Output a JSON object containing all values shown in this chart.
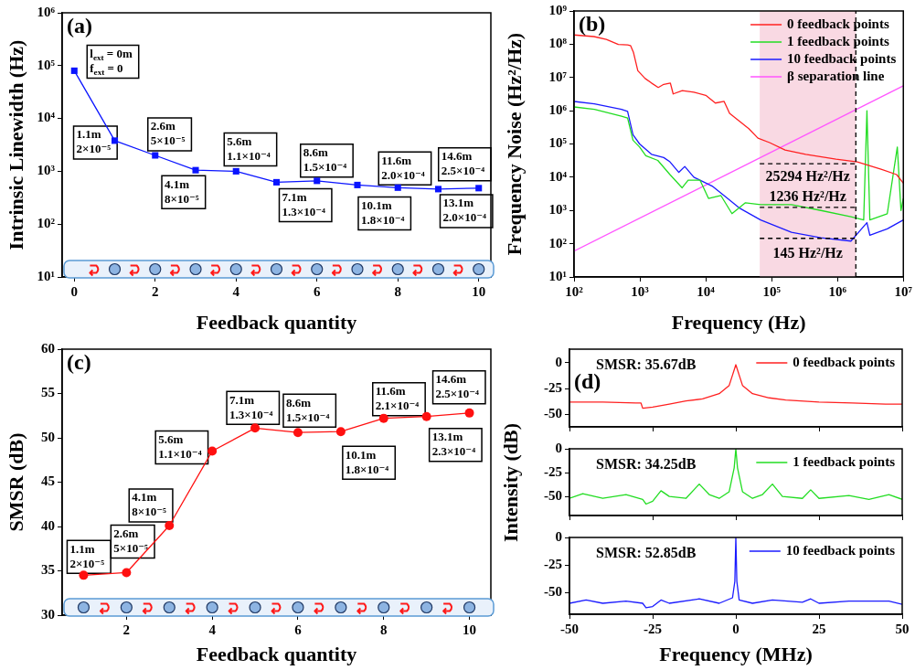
{
  "chart_data": [
    {
      "type": "line",
      "title": "(a)",
      "xlabel": "Feedback quantity",
      "ylabel": "Intrinsic Linewidth (Hz)",
      "log": "y",
      "marker": "square",
      "line_style": "solid",
      "color": "#0a14ff",
      "x": [
        0,
        1,
        2,
        3,
        4,
        5,
        6,
        7,
        8,
        9,
        10
      ],
      "values": [
        80000,
        3800,
        2000,
        1050,
        1000,
        620,
        660,
        550,
        490,
        460,
        480
      ],
      "xlim": [
        -0.3,
        10.3
      ],
      "xticks": [
        0,
        2,
        4,
        6,
        8,
        10
      ],
      "ylim": [
        10,
        1000000
      ],
      "yticks": [
        {
          "value": 10,
          "label": "10¹"
        },
        {
          "value": 100,
          "label": "10²"
        },
        {
          "value": 1000,
          "label": "10³"
        },
        {
          "value": 10000,
          "label": "10⁴"
        },
        {
          "value": 100000,
          "label": "10⁵"
        },
        {
          "value": 1000000,
          "label": "10⁶"
        }
      ],
      "annotations": [
        {
          "text": "l$_{ext}$ = 0m\nf$_{ext}$ = 0",
          "x": 0,
          "y": 80000
        },
        {
          "text": "1.1m\n2×10⁻⁵",
          "x": 1,
          "y": 3800
        },
        {
          "text": "2.6m\n5×10⁻⁵",
          "x": 2,
          "y": 2000
        },
        {
          "text": "4.1m\n8×10⁻⁵",
          "x": 3,
          "y": 1050
        },
        {
          "text": "5.6m\n1.1×10⁻⁴",
          "x": 4,
          "y": 1000
        },
        {
          "text": "7.1m\n1.3×10⁻⁴",
          "x": 5,
          "y": 620
        },
        {
          "text": "8.6m\n1.5×10⁻⁴",
          "x": 6,
          "y": 660
        },
        {
          "text": "10.1m\n1.8×10⁻⁴",
          "x": 7,
          "y": 550
        },
        {
          "text": "11.6m\n2.0×10⁻⁴",
          "x": 8,
          "y": 490
        },
        {
          "text": "13.1m\n2.0×10⁻⁴",
          "x": 9,
          "y": 460
        },
        {
          "text": "14.6m\n2.5×10⁻⁴",
          "x": 10,
          "y": 480
        }
      ]
    },
    {
      "type": "line",
      "title": "(b)",
      "xlabel": "Frequency (Hz)",
      "ylabel": "Frequency Noise (Hz²/Hz)",
      "log": "xy",
      "marker": "none",
      "legend": "top right",
      "xlim": [
        100,
        10000000
      ],
      "xticks": [
        {
          "value": 100,
          "label": "10²"
        },
        {
          "value": 1000,
          "label": "10³"
        },
        {
          "value": 10000,
          "label": "10⁴"
        },
        {
          "value": 100000,
          "label": "10⁵"
        },
        {
          "value": 1000000,
          "label": "10⁶"
        },
        {
          "value": 10000000,
          "label": "10⁷"
        }
      ],
      "ylim": [
        10,
        1000000000
      ],
      "yticks": [
        {
          "value": 10,
          "label": "10¹"
        },
        {
          "value": 100,
          "label": "10²"
        },
        {
          "value": 1000,
          "label": "10³"
        },
        {
          "value": 10000,
          "label": "10⁴"
        },
        {
          "value": 100000,
          "label": "10⁵"
        },
        {
          "value": 1000000,
          "label": "10⁶"
        },
        {
          "value": 10000000,
          "label": "10⁷"
        },
        {
          "value": 100000000,
          "label": "10⁸"
        },
        {
          "value": 1000000000,
          "label": "10⁹"
        }
      ],
      "series": [
        {
          "name": "0 feedback points",
          "color": "#ff2020",
          "x": [
            100,
            200,
            310,
            470,
            650,
            720,
            800,
            930,
            1200,
            1500,
            1900,
            2300,
            2900,
            3200,
            4400,
            6600,
            10000,
            14000,
            19000,
            23000,
            34000,
            45000,
            62000,
            93000,
            160000,
            330000,
            950000,
            2000000,
            4700000,
            7900000,
            10000000
          ],
          "values": [
            190000000,
            170000000,
            140000000,
            98000000,
            95000000,
            91000000,
            56000000,
            16000000,
            9300000,
            6800000,
            5000000,
            6200000,
            6800000,
            3200000,
            4000000,
            3600000,
            2900000,
            1700000,
            1900000,
            830000,
            450000,
            290000,
            150000,
            110000,
            66000,
            49000,
            35000,
            29000,
            17000,
            12000,
            6600
          ]
        },
        {
          "name": "1 feedback points",
          "color": "#22dd22",
          "x": [
            100,
            204,
            525,
            650,
            785,
            990,
            1230,
            1870,
            2860,
            4380,
            5400,
            8200,
            11000,
            17000,
            25000,
            40000,
            68000,
            200000,
            560000,
            1600000,
            2500000,
            2800000,
            3100000,
            5700000,
            8100000,
            9200000,
            10000000
          ],
          "values": [
            1300000,
            1100000,
            680000,
            600000,
            130000,
            81000,
            44000,
            32000,
            12000,
            4800,
            8100,
            8100,
            2300,
            2800,
            800,
            1700,
            1500,
            1500,
            1000,
            650,
            520,
            1000000,
            520,
            800,
            81000,
            1000,
            2300
          ]
        },
        {
          "name": "10 feedback points",
          "color": "#1a1aff",
          "x": [
            100,
            204,
            525,
            650,
            785,
            990,
            1500,
            2300,
            2860,
            3900,
            4800,
            6600,
            12500,
            19000,
            32000,
            68000,
            200000,
            560000,
            1600000,
            2800000,
            3100000,
            5700000,
            10000000
          ],
          "values": [
            1900000,
            1600000,
            1100000,
            950000,
            190000,
            100000,
            49000,
            39000,
            29000,
            14000,
            21000,
            10000,
            5400,
            2800,
            1200,
            520,
            220,
            150,
            120,
            430,
            180,
            280,
            520
          ]
        },
        {
          "name": "β separation line",
          "color": "#ff55ff",
          "x": [
            100,
            10000000
          ],
          "values": [
            60,
            5600000
          ]
        }
      ],
      "bands": [
        {
          "axis": "x",
          "from": 66000,
          "to": 1900000,
          "color": "#f9d9e3"
        }
      ],
      "ref_lines": [
        {
          "axis": "y",
          "value": 25294,
          "label": "25294 Hz²/Hz",
          "line_style": "dashed",
          "color": "#000000"
        },
        {
          "axis": "y",
          "value": 1236,
          "label": "1236 Hz²/Hz",
          "line_style": "dashed",
          "color": "#000000"
        },
        {
          "axis": "y",
          "value": 145,
          "label": "145 Hz²/Hz",
          "line_style": "dashed",
          "color": "#000000"
        },
        {
          "axis": "x",
          "value": 1900000,
          "line_style": "dashed",
          "color": "#000000"
        }
      ]
    },
    {
      "type": "line",
      "title": "(c)",
      "xlabel": "Feedback quantity",
      "ylabel": "SMSR (dB)",
      "marker": "circle",
      "line_style": "solid",
      "color": "#ff1010",
      "x": [
        1,
        2,
        3,
        4,
        5,
        6,
        7,
        8,
        9,
        10
      ],
      "values": [
        34.5,
        34.8,
        40.1,
        48.5,
        51.1,
        50.6,
        50.7,
        52.2,
        52.4,
        52.8
      ],
      "xlim": [
        0.5,
        10.5
      ],
      "xticks": [
        2,
        4,
        6,
        8,
        10
      ],
      "ylim": [
        30,
        60
      ],
      "yticks": [
        30,
        35,
        40,
        45,
        50,
        55,
        60
      ],
      "annotations": [
        {
          "text": "1.1m\n2×10⁻⁵",
          "x": 1,
          "y": 34.5
        },
        {
          "text": "2.6m\n5×10⁻⁵",
          "x": 2,
          "y": 34.8
        },
        {
          "text": "4.1m\n8×10⁻⁵",
          "x": 3,
          "y": 40.1
        },
        {
          "text": "5.6m\n1.1×10⁻⁴",
          "x": 4,
          "y": 48.5
        },
        {
          "text": "7.1m\n1.3×10⁻⁴",
          "x": 5,
          "y": 51.1
        },
        {
          "text": "8.6m\n1.5×10⁻⁴",
          "x": 6,
          "y": 50.6
        },
        {
          "text": "10.1m\n1.8×10⁻⁴",
          "x": 7,
          "y": 50.7
        },
        {
          "text": "11.6m\n2.1×10⁻⁴",
          "x": 8,
          "y": 52.2
        },
        {
          "text": "13.1m\n2.3×10⁻⁴",
          "x": 9,
          "y": 52.4
        },
        {
          "text": "14.6m\n2.5×10⁻⁴",
          "x": 10,
          "y": 52.8
        }
      ]
    },
    {
      "type": "line",
      "title": "(d)",
      "marker": "none",
      "legend": "top right",
      "tick_labels": "y",
      "xlim": [
        -50,
        50
      ],
      "xticks": [
        -50,
        -25,
        0,
        25,
        50
      ],
      "ylim": [
        -62,
        13
      ],
      "yticks": [
        -50,
        -25,
        0
      ],
      "annotations": [
        "SMSR: 35.67dB"
      ],
      "series": [
        {
          "name": "0 feedback points",
          "color": "#ff2020",
          "x": [
            -50,
            -40,
            -30,
            -28.5,
            -28,
            -25,
            -20,
            -15,
            -10,
            -5,
            -2,
            -1,
            0,
            1,
            2,
            5,
            10,
            15,
            25,
            35,
            45,
            50
          ],
          "values": [
            -38,
            -38,
            -39,
            -39,
            -44,
            -43,
            -40,
            -37,
            -35,
            -30,
            -22,
            -12,
            -2,
            -12,
            -22,
            -30,
            -34,
            -36,
            -38,
            -39,
            -40,
            -40
          ]
        }
      ]
    },
    {
      "type": "line",
      "ylabel": "Intensity (dB)",
      "marker": "none",
      "legend": "top right",
      "tick_labels": "y",
      "xlim": [
        -50,
        50
      ],
      "xticks": [
        -50,
        -25,
        0,
        25,
        50
      ],
      "ylim": [
        -70,
        0
      ],
      "yticks": [
        -50,
        -25,
        0
      ],
      "annotations": [
        "SMSR: 34.25dB"
      ],
      "series": [
        {
          "name": "1 feedback points",
          "color": "#22dd22",
          "x": [
            -50,
            -46,
            -40,
            -33,
            -28,
            -27,
            -25,
            -22.5,
            -20,
            -15,
            -11,
            -8,
            -5,
            -2,
            -0.5,
            0,
            0.5,
            2,
            5,
            8,
            11,
            14,
            20,
            22.5,
            25,
            34,
            40,
            46,
            50
          ],
          "values": [
            -52,
            -47,
            -52,
            -48,
            -53,
            -58,
            -55,
            -44,
            -50,
            -52,
            -37,
            -48,
            -52,
            -45,
            -20,
            0,
            -20,
            -45,
            -52,
            -48,
            -37,
            -50,
            -52,
            -43,
            -52,
            -49,
            -53,
            -48,
            -53
          ]
        }
      ]
    },
    {
      "type": "line",
      "xlabel": "Frequency (MHz)",
      "marker": "none",
      "legend": "top right",
      "xlim": [
        -50,
        50
      ],
      "xticks": [
        -50,
        -25,
        0,
        25,
        50
      ],
      "ylim": [
        -70,
        0
      ],
      "yticks": [
        -50,
        -25,
        0
      ],
      "annotations": [
        "SMSR: 52.85dB"
      ],
      "series": [
        {
          "name": "10 feedback points",
          "color": "#1a1aff",
          "x": [
            -50,
            -45,
            -40,
            -33,
            -28,
            -27,
            -25,
            -22.5,
            -20,
            -11,
            -5,
            -1,
            -0.3,
            0,
            0.3,
            1,
            5,
            11,
            20,
            22.5,
            25,
            34,
            46,
            50
          ],
          "values": [
            -60,
            -57,
            -60,
            -58,
            -60,
            -64,
            -63,
            -57,
            -60,
            -56,
            -60,
            -55,
            -40,
            0,
            -40,
            -57,
            -60,
            -57,
            -59,
            -56,
            -60,
            -58,
            -58,
            -61
          ]
        }
      ]
    }
  ]
}
